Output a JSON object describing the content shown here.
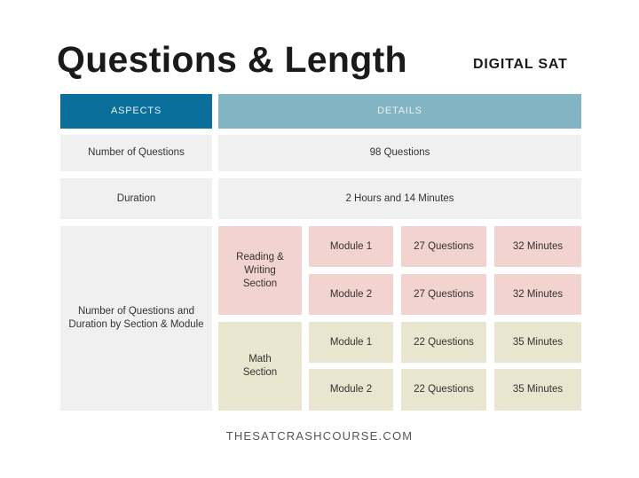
{
  "title": "Questions & Length",
  "subtitle": "DIGITAL SAT",
  "colors": {
    "aspects_header": "#0a6f9a",
    "details_header": "#82b4c4",
    "grey": "#f0f0f0",
    "reading": "#f2d3cf",
    "math": "#e8e6cf"
  },
  "headers": {
    "aspects": "ASPECTS",
    "details": "DETAILS"
  },
  "rows": [
    {
      "aspect": "Number of Questions",
      "detail": "98 Questions"
    },
    {
      "aspect": "Duration",
      "detail": "2 Hours and 14 Minutes"
    }
  ],
  "section_row": {
    "aspect": "Number of Questions and Duration by Section & Module",
    "sections": [
      {
        "name": "Reading & Writing Section",
        "modules": [
          {
            "module": "Module 1",
            "questions": "27 Questions",
            "minutes": "32 Minutes"
          },
          {
            "module": "Module 2",
            "questions": "27 Questions",
            "minutes": "32 Minutes"
          }
        ]
      },
      {
        "name": "Math Section",
        "modules": [
          {
            "module": "Module 1",
            "questions": "22 Questions",
            "minutes": "35 Minutes"
          },
          {
            "module": "Module 2",
            "questions": "22 Questions",
            "minutes": "35 Minutes"
          }
        ]
      }
    ]
  },
  "footer": "THESATCRASHCOURSE.COM"
}
